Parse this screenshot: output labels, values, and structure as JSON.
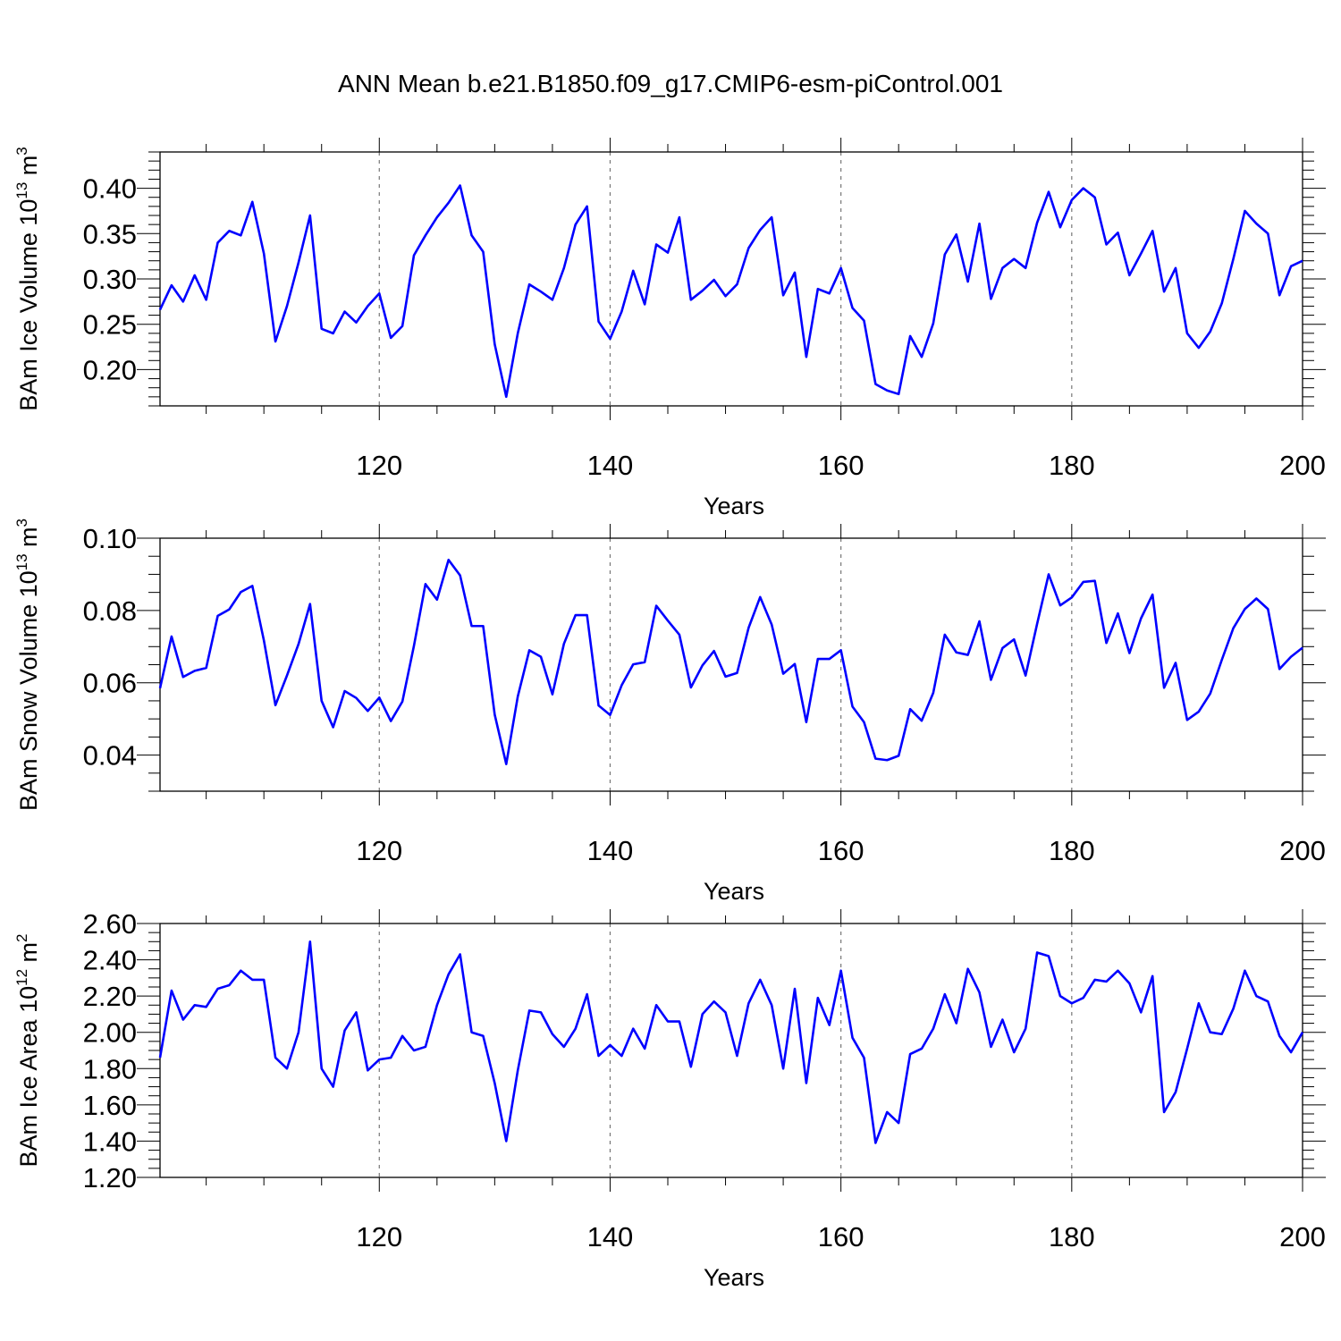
{
  "title": "ANN Mean b.e21.B1850.f09_g17.CMIP6-esm-piControl.001",
  "colors": {
    "series": "#0000ff",
    "axis": "#000000",
    "grid": "#777777"
  },
  "chart_data": [
    {
      "type": "line",
      "title": "ANN Mean b.e21.B1850.f09_g17.CMIP6-esm-piControl.001",
      "xlabel": "Years",
      "ylabel": "BAm Ice Volume 10",
      "ylabel_exp": "13",
      "ylabel_unit": " m",
      "ylabel_unit_exp": "3",
      "xlim": [
        101,
        200
      ],
      "ylim": [
        0.16,
        0.44
      ],
      "yticks": [
        0.2,
        0.25,
        0.3,
        0.35,
        0.4
      ],
      "ytick_labels": [
        "0.20",
        "0.25",
        "0.30",
        "0.35",
        "0.40"
      ],
      "yminor": 0.01,
      "xticks": [
        120,
        140,
        160,
        180,
        200
      ],
      "xtick_labels": [
        "120",
        "140",
        "160",
        "180",
        "200"
      ],
      "grid": "dashed vertical at major x ticks",
      "x_start": 101,
      "values": [
        0.266,
        0.293,
        0.275,
        0.304,
        0.277,
        0.34,
        0.353,
        0.348,
        0.385,
        0.328,
        0.231,
        0.27,
        0.318,
        0.37,
        0.245,
        0.24,
        0.264,
        0.252,
        0.27,
        0.284,
        0.235,
        0.248,
        0.326,
        0.348,
        0.368,
        0.384,
        0.403,
        0.348,
        0.33,
        0.228,
        0.17,
        0.24,
        0.294,
        0.286,
        0.277,
        0.312,
        0.36,
        0.38,
        0.253,
        0.234,
        0.264,
        0.309,
        0.272,
        0.338,
        0.329,
        0.368,
        0.277,
        0.287,
        0.299,
        0.281,
        0.294,
        0.334,
        0.354,
        0.368,
        0.282,
        0.307,
        0.214,
        0.289,
        0.284,
        0.312,
        0.268,
        0.254,
        0.184,
        0.177,
        0.173,
        0.237,
        0.214,
        0.251,
        0.327,
        0.349,
        0.297,
        0.361,
        0.278,
        0.312,
        0.322,
        0.312,
        0.362,
        0.396,
        0.357,
        0.387,
        0.4,
        0.39,
        0.338,
        0.351,
        0.304,
        0.328,
        0.353,
        0.286,
        0.312,
        0.24,
        0.224,
        0.242,
        0.273,
        0.322,
        0.375,
        0.361,
        0.35,
        0.282,
        0.314,
        0.32
      ]
    },
    {
      "type": "line",
      "xlabel": "Years",
      "ylabel": "BAm Snow Volume 10",
      "ylabel_exp": "13",
      "ylabel_unit": " m",
      "ylabel_unit_exp": "3",
      "xlim": [
        101,
        200
      ],
      "ylim": [
        0.03,
        0.1
      ],
      "yticks": [
        0.04,
        0.06,
        0.08,
        0.1
      ],
      "ytick_labels": [
        "0.04",
        "0.06",
        "0.08",
        "0.10"
      ],
      "yminor": 0.005,
      "xticks": [
        120,
        140,
        160,
        180,
        200
      ],
      "xtick_labels": [
        "120",
        "140",
        "160",
        "180",
        "200"
      ],
      "grid": "dashed vertical at major x ticks",
      "x_start": 101,
      "values": [
        0.0585,
        0.0728,
        0.0616,
        0.0633,
        0.0641,
        0.0785,
        0.0803,
        0.0851,
        0.0868,
        0.0717,
        0.0538,
        0.062,
        0.0707,
        0.0818,
        0.055,
        0.0477,
        0.0577,
        0.0558,
        0.0522,
        0.0559,
        0.0494,
        0.0548,
        0.0702,
        0.0873,
        0.083,
        0.094,
        0.0897,
        0.0757,
        0.0757,
        0.0512,
        0.0375,
        0.0562,
        0.069,
        0.0672,
        0.0568,
        0.0708,
        0.0787,
        0.0787,
        0.0537,
        0.0511,
        0.0593,
        0.0651,
        0.0657,
        0.0813,
        0.0772,
        0.0733,
        0.0587,
        0.0648,
        0.0688,
        0.0617,
        0.0627,
        0.0752,
        0.0837,
        0.0761,
        0.0625,
        0.0652,
        0.0491,
        0.0666,
        0.0666,
        0.069,
        0.0534,
        0.0491,
        0.039,
        0.0386,
        0.0398,
        0.0527,
        0.0495,
        0.0572,
        0.0733,
        0.0684,
        0.0677,
        0.077,
        0.0608,
        0.0696,
        0.072,
        0.062,
        0.0763,
        0.09,
        0.0814,
        0.0836,
        0.0879,
        0.0882,
        0.071,
        0.0792,
        0.0682,
        0.0778,
        0.0844,
        0.0586,
        0.0655,
        0.0497,
        0.052,
        0.057,
        0.0663,
        0.0751,
        0.0804,
        0.0833,
        0.0804,
        0.0638,
        0.0672,
        0.0697
      ]
    },
    {
      "type": "line",
      "xlabel": "Years",
      "ylabel": "BAm Ice Area 10",
      "ylabel_exp": "12",
      "ylabel_unit": " m",
      "ylabel_unit_exp": "2",
      "xlim": [
        101,
        200
      ],
      "ylim": [
        1.2,
        2.6
      ],
      "yticks": [
        1.2,
        1.4,
        1.6,
        1.8,
        2.0,
        2.2,
        2.4,
        2.6
      ],
      "ytick_labels": [
        "1.20",
        "1.40",
        "1.60",
        "1.80",
        "2.00",
        "2.20",
        "2.40",
        "2.60"
      ],
      "yminor": 0.05,
      "xticks": [
        120,
        140,
        160,
        180,
        200
      ],
      "xtick_labels": [
        "120",
        "140",
        "160",
        "180",
        "200"
      ],
      "grid": "dashed vertical at major x ticks",
      "x_start": 101,
      "values": [
        1.86,
        2.23,
        2.07,
        2.15,
        2.14,
        2.24,
        2.26,
        2.34,
        2.29,
        2.29,
        1.86,
        1.8,
        2.0,
        2.5,
        1.8,
        1.7,
        2.01,
        2.11,
        1.79,
        1.85,
        1.86,
        1.98,
        1.9,
        1.92,
        2.15,
        2.32,
        2.43,
        2.0,
        1.98,
        1.72,
        1.4,
        1.79,
        2.12,
        2.11,
        1.99,
        1.92,
        2.02,
        2.21,
        1.87,
        1.93,
        1.87,
        2.02,
        1.91,
        2.15,
        2.06,
        2.06,
        1.81,
        2.1,
        2.17,
        2.11,
        1.87,
        2.16,
        2.29,
        2.15,
        1.8,
        2.24,
        1.72,
        2.19,
        2.04,
        2.34,
        1.97,
        1.86,
        1.39,
        1.56,
        1.5,
        1.88,
        1.91,
        2.02,
        2.21,
        2.05,
        2.35,
        2.22,
        1.92,
        2.07,
        1.89,
        2.02,
        2.44,
        2.42,
        2.2,
        2.16,
        2.19,
        2.29,
        2.28,
        2.34,
        2.27,
        2.11,
        2.31,
        1.56,
        1.67,
        1.91,
        2.16,
        2.0,
        1.99,
        2.13,
        2.34,
        2.2,
        2.17,
        1.98,
        1.89,
        2.0
      ]
    }
  ]
}
